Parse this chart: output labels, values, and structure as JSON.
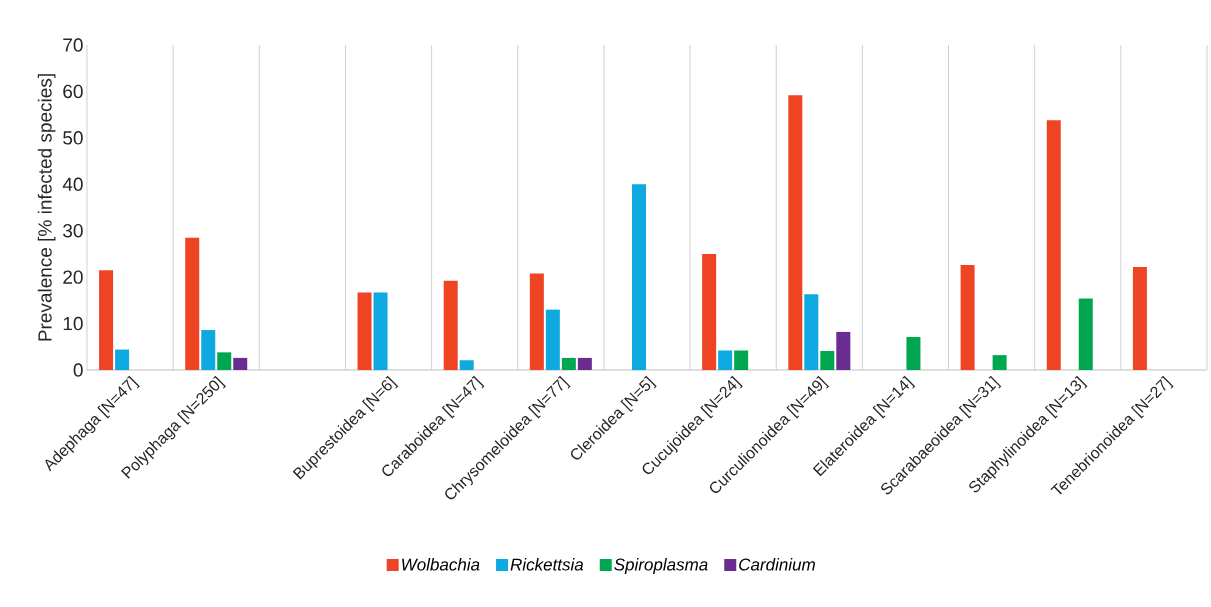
{
  "chart_data": {
    "type": "bar",
    "ylabel": "Prevalence [% infected species]",
    "categories": [
      "Adephaga [N=47]",
      "Polyphaga [N=250]",
      null,
      "Buprestoidea [N=6]",
      "Caraboidea [N=47]",
      "Chrysomeloidea [N=77]",
      "Cleroidea [N=5]",
      "Cucujoidea [N=24]",
      "Curculionoidea [N=49]",
      "Elateroidea [N=14]",
      "Scarabaeoidea [N=31]",
      "Staphylinoidea [N=13]",
      "Tenebrionoidea [N=27]"
    ],
    "series": [
      {
        "name": "Wolbachia",
        "color": "#ee4423",
        "values": [
          21.5,
          28.5,
          null,
          16.7,
          19.2,
          20.8,
          null,
          25.0,
          59.2,
          null,
          22.6,
          53.8,
          22.2
        ]
      },
      {
        "name": "Rickettsia",
        "color": "#0ea9e0",
        "values": [
          4.4,
          8.6,
          null,
          16.7,
          2.1,
          13.0,
          40.0,
          4.2,
          16.3,
          null,
          null,
          null,
          null
        ]
      },
      {
        "name": "Spiroplasma",
        "color": "#00a650",
        "values": [
          null,
          3.8,
          null,
          null,
          null,
          2.6,
          null,
          4.2,
          4.1,
          7.1,
          3.2,
          15.4,
          null
        ]
      },
      {
        "name": "Cardinium",
        "color": "#6a2c91",
        "values": [
          null,
          2.6,
          null,
          null,
          null,
          2.6,
          null,
          null,
          8.2,
          null,
          null,
          null,
          null
        ]
      }
    ],
    "ylim": [
      0,
      70
    ],
    "yticks": [
      0,
      10,
      20,
      30,
      40,
      50,
      60,
      70
    ],
    "grid": "x",
    "legend": "bottom"
  }
}
